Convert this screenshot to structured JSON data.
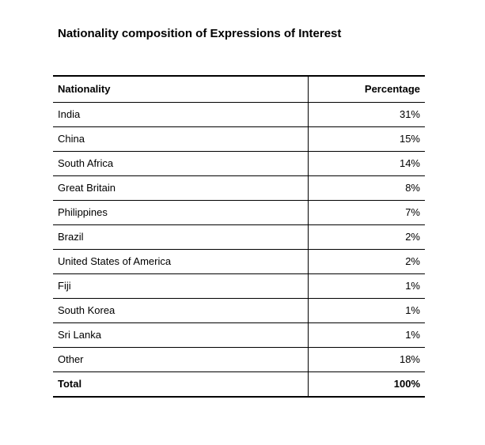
{
  "title": "Nationality composition of Expressions of Interest",
  "table": {
    "headers": {
      "nationality": "Nationality",
      "percentage": "Percentage"
    },
    "rows": [
      {
        "nationality": "India",
        "percentage": "31%"
      },
      {
        "nationality": "China",
        "percentage": "15%"
      },
      {
        "nationality": "South Africa",
        "percentage": "14%"
      },
      {
        "nationality": "Great Britain",
        "percentage": "8%"
      },
      {
        "nationality": "Philippines",
        "percentage": "7%"
      },
      {
        "nationality": "Brazil",
        "percentage": "2%"
      },
      {
        "nationality": "United States of America",
        "percentage": "2%"
      },
      {
        "nationality": "Fiji",
        "percentage": "1%"
      },
      {
        "nationality": "South Korea",
        "percentage": "1%"
      },
      {
        "nationality": "Sri Lanka",
        "percentage": "1%"
      },
      {
        "nationality": "Other",
        "percentage": "18%"
      }
    ],
    "total": {
      "label": "Total",
      "value": "100%"
    }
  }
}
